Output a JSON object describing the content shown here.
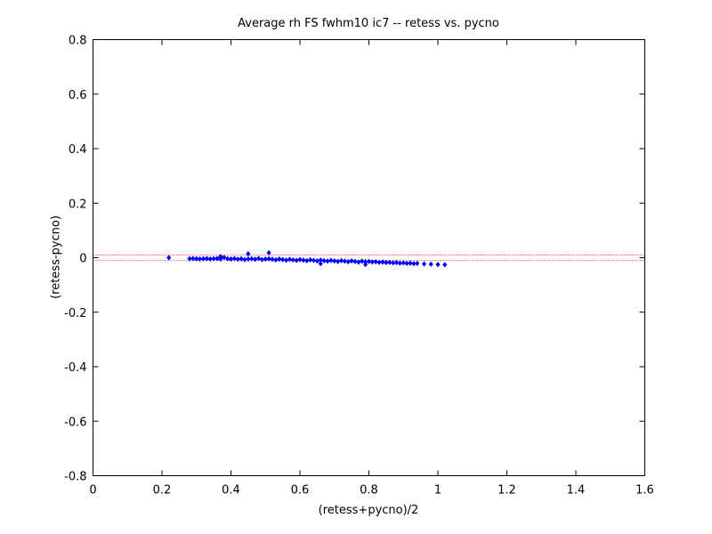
{
  "chart_data": {
    "type": "scatter",
    "title": "Average rh FS fwhm10 ic7 -- retess vs. pycno",
    "xlabel": "(retess+pycno)/2",
    "ylabel": "(retess-pycno)",
    "xlim": [
      0,
      1.6
    ],
    "ylim": [
      -0.8,
      0.8
    ],
    "xticks": [
      0,
      0.2,
      0.4,
      0.6,
      0.8,
      1,
      1.2,
      1.4,
      1.6
    ],
    "xtick_labels": [
      "0",
      "0.2",
      "0.4",
      "0.6",
      "0.8",
      "1",
      "1.2",
      "1.4",
      "1.6"
    ],
    "yticks": [
      -0.8,
      -0.6,
      -0.4,
      -0.2,
      0,
      0.2,
      0.4,
      0.6,
      0.8
    ],
    "ytick_labels": [
      "-0.8",
      "-0.6",
      "-0.4",
      "-0.2",
      "0",
      "0.2",
      "0.4",
      "0.6",
      "0.8"
    ],
    "grid": false,
    "marker_color": "#0000ff",
    "reference_line_color": "#ff0000",
    "reference_lines_y": [
      0.01,
      -0.01
    ],
    "series": [
      {
        "x": [
          0.22,
          0.28,
          0.29,
          0.3,
          0.31,
          0.32,
          0.33,
          0.34,
          0.35,
          0.36,
          0.37,
          0.38,
          0.39,
          0.4,
          0.41,
          0.42,
          0.43,
          0.44,
          0.45,
          0.46,
          0.47,
          0.48,
          0.49,
          0.5,
          0.51,
          0.52,
          0.53,
          0.54,
          0.55,
          0.56,
          0.57,
          0.58,
          0.59,
          0.6,
          0.61,
          0.62,
          0.63,
          0.64,
          0.65,
          0.66,
          0.67,
          0.68,
          0.69,
          0.7,
          0.71,
          0.72,
          0.73,
          0.74,
          0.75,
          0.76,
          0.77,
          0.78,
          0.79,
          0.8,
          0.81,
          0.82,
          0.83,
          0.84,
          0.85,
          0.86,
          0.87,
          0.88,
          0.89,
          0.9,
          0.91,
          0.92,
          0.93,
          0.94,
          0.96,
          0.98,
          1.0,
          1.02,
          0.45,
          0.51,
          0.37,
          0.66,
          0.79
        ],
        "y": [
          0.0,
          -0.004,
          -0.003,
          -0.004,
          -0.005,
          -0.004,
          -0.003,
          -0.005,
          -0.004,
          -0.003,
          -0.005,
          0.001,
          -0.004,
          -0.005,
          -0.003,
          -0.006,
          -0.004,
          -0.007,
          -0.005,
          -0.004,
          -0.006,
          -0.003,
          -0.007,
          -0.005,
          -0.004,
          -0.006,
          -0.008,
          -0.005,
          -0.007,
          -0.009,
          -0.006,
          -0.008,
          -0.01,
          -0.007,
          -0.009,
          -0.011,
          -0.008,
          -0.01,
          -0.012,
          -0.009,
          -0.011,
          -0.013,
          -0.01,
          -0.012,
          -0.014,
          -0.011,
          -0.013,
          -0.015,
          -0.012,
          -0.014,
          -0.016,
          -0.013,
          -0.015,
          -0.014,
          -0.016,
          -0.015,
          -0.017,
          -0.016,
          -0.018,
          -0.017,
          -0.019,
          -0.018,
          -0.02,
          -0.019,
          -0.021,
          -0.02,
          -0.022,
          -0.021,
          -0.023,
          -0.024,
          -0.025,
          -0.026,
          0.014,
          0.018,
          0.004,
          -0.022,
          -0.025
        ]
      }
    ]
  }
}
